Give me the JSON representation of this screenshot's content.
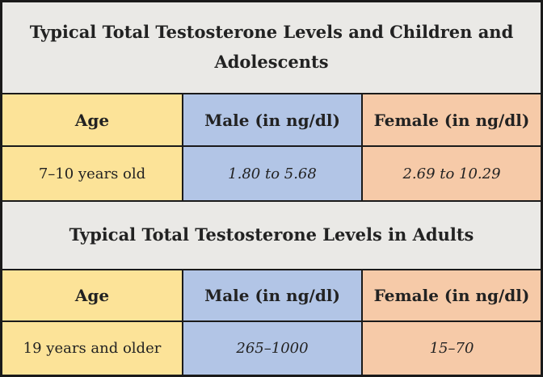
{
  "colors": {
    "yellow": "#fce398",
    "blue": "#b2c5e6",
    "orange": "#f6caa8",
    "title_bg": "#eae9e6",
    "border": "#1a1a1a",
    "text": "#222222"
  },
  "chart_data": [
    {
      "type": "table",
      "title": "Typical Total Testosterone Levels and Children and Adolescents",
      "columns": [
        "Age",
        "Male (in ng/dl)",
        "Female (in ng/dl)"
      ],
      "rows": [
        [
          "7–10 years old",
          "1.80 to 5.68",
          "2.69 to 10.29"
        ]
      ]
    },
    {
      "type": "table",
      "title": "Typical Total Testosterone Levels in Adults",
      "columns": [
        "Age",
        "Male (in ng/dl)",
        "Female (in ng/dl)"
      ],
      "rows": [
        [
          "19 years and older",
          "265–1000",
          "15–70"
        ]
      ]
    }
  ]
}
